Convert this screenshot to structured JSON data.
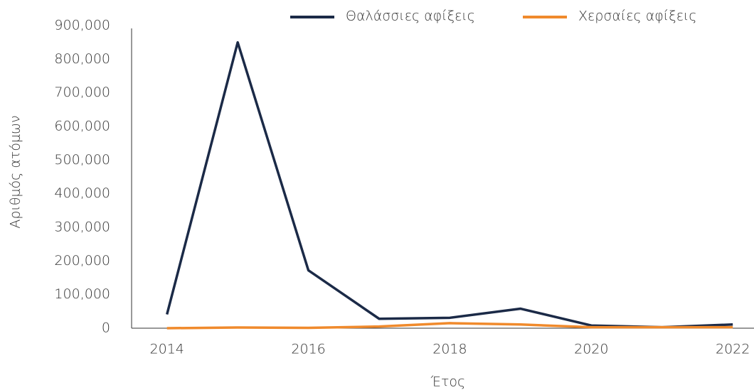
{
  "chart_data": {
    "type": "line",
    "x": [
      2014,
      2015,
      2016,
      2017,
      2018,
      2019,
      2020,
      2021,
      2022
    ],
    "xlim": [
      2013.5,
      2022.3
    ],
    "xticks": [
      2014,
      2016,
      2018,
      2020,
      2022
    ],
    "ylim": [
      0,
      900000
    ],
    "yticks": [
      0,
      {
        "value": 100000,
        "label": "100,000"
      },
      {
        "value": 200000,
        "label": "200,000"
      },
      {
        "value": 300000,
        "label": "300,000"
      },
      {
        "value": 400000,
        "label": "400,000"
      },
      {
        "value": 500000,
        "label": "500,000"
      },
      {
        "value": 600000,
        "label": "600,000"
      },
      {
        "value": 700000,
        "label": "700,000"
      },
      {
        "value": 800000,
        "label": "800,000"
      },
      {
        "value": 900000,
        "label": "900,000"
      }
    ],
    "xlabel": "Έτος",
    "ylabel": "Αριθμός ατόμων",
    "grid": false,
    "legend": "top",
    "series": [
      {
        "name": "Θαλάσσιες αφίξεις",
        "color": "#1b2a47",
        "values": [
          41000,
          850000,
          172000,
          28000,
          31000,
          58000,
          8000,
          3000,
          11000
        ]
      },
      {
        "name": "Χερσαίες αφίξεις",
        "color": "#f08a2c",
        "values": [
          0,
          2000,
          1000,
          5000,
          15000,
          11000,
          3000,
          3000,
          3000
        ]
      }
    ]
  }
}
